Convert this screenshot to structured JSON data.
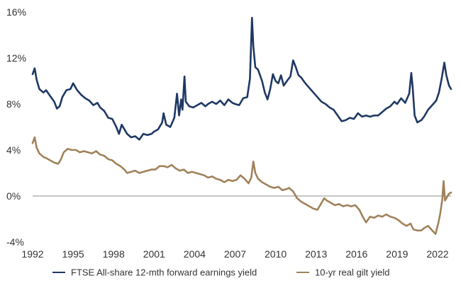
{
  "chart_data": {
    "type": "line",
    "title": "",
    "xlabel": "",
    "ylabel": "",
    "xlim": [
      1992,
      2023
    ],
    "ylim": [
      -4,
      16
    ],
    "y_ticks": [
      {
        "value": 16,
        "label": "16%"
      },
      {
        "value": 12,
        "label": "12%"
      },
      {
        "value": 8,
        "label": "8%"
      },
      {
        "value": 4,
        "label": "4%"
      },
      {
        "value": 0,
        "label": "0%"
      },
      {
        "value": -4,
        "label": "-4%"
      }
    ],
    "x_ticks": [
      {
        "value": 1992,
        "label": "1992"
      },
      {
        "value": 1995,
        "label": "1995"
      },
      {
        "value": 1998,
        "label": "1998"
      },
      {
        "value": 2001,
        "label": "2001"
      },
      {
        "value": 2004,
        "label": "2004"
      },
      {
        "value": 2007,
        "label": "2007"
      },
      {
        "value": 2010,
        "label": "2010"
      },
      {
        "value": 2013,
        "label": "2013"
      },
      {
        "value": 2016,
        "label": "2016"
      },
      {
        "value": 2019,
        "label": "2019"
      },
      {
        "value": 2022,
        "label": "2022"
      }
    ],
    "grid": false,
    "zero_line": true,
    "legend_position": "bottom",
    "series": [
      {
        "name": "FTSE All-share 12-mth forward  earnings yield",
        "color": "#1f3864",
        "points": [
          [
            1992.0,
            10.6
          ],
          [
            1992.15,
            11.1
          ],
          [
            1992.3,
            10.1
          ],
          [
            1992.5,
            9.3
          ],
          [
            1992.8,
            9.0
          ],
          [
            1993.0,
            9.2
          ],
          [
            1993.3,
            8.7
          ],
          [
            1993.6,
            8.2
          ],
          [
            1993.8,
            7.6
          ],
          [
            1994.0,
            7.8
          ],
          [
            1994.2,
            8.6
          ],
          [
            1994.5,
            9.2
          ],
          [
            1994.8,
            9.3
          ],
          [
            1995.0,
            9.8
          ],
          [
            1995.3,
            9.2
          ],
          [
            1995.6,
            8.8
          ],
          [
            1995.9,
            8.5
          ],
          [
            1996.2,
            8.3
          ],
          [
            1996.5,
            7.9
          ],
          [
            1996.8,
            8.1
          ],
          [
            1997.0,
            7.7
          ],
          [
            1997.3,
            7.4
          ],
          [
            1997.6,
            6.8
          ],
          [
            1997.9,
            6.7
          ],
          [
            1998.2,
            6.0
          ],
          [
            1998.4,
            5.4
          ],
          [
            1998.6,
            6.2
          ],
          [
            1998.8,
            5.8
          ],
          [
            1999.0,
            5.4
          ],
          [
            1999.3,
            5.1
          ],
          [
            1999.6,
            5.2
          ],
          [
            1999.9,
            4.9
          ],
          [
            2000.2,
            5.4
          ],
          [
            2000.5,
            5.3
          ],
          [
            2000.8,
            5.4
          ],
          [
            2001.0,
            5.6
          ],
          [
            2001.3,
            5.8
          ],
          [
            2001.6,
            6.4
          ],
          [
            2001.7,
            7.2
          ],
          [
            2001.9,
            6.2
          ],
          [
            2002.2,
            6.0
          ],
          [
            2002.5,
            6.8
          ],
          [
            2002.7,
            8.9
          ],
          [
            2002.85,
            7.0
          ],
          [
            2003.0,
            8.4
          ],
          [
            2003.1,
            7.5
          ],
          [
            2003.25,
            10.4
          ],
          [
            2003.35,
            8.2
          ],
          [
            2003.6,
            7.8
          ],
          [
            2003.9,
            7.7
          ],
          [
            2004.2,
            7.9
          ],
          [
            2004.5,
            8.1
          ],
          [
            2004.8,
            7.8
          ],
          [
            2005.0,
            8.0
          ],
          [
            2005.3,
            8.2
          ],
          [
            2005.6,
            8.0
          ],
          [
            2005.9,
            8.3
          ],
          [
            2006.2,
            7.9
          ],
          [
            2006.5,
            8.4
          ],
          [
            2006.8,
            8.1
          ],
          [
            2007.0,
            8.0
          ],
          [
            2007.3,
            7.9
          ],
          [
            2007.6,
            8.5
          ],
          [
            2007.9,
            8.6
          ],
          [
            2008.1,
            10.2
          ],
          [
            2008.25,
            15.5
          ],
          [
            2008.35,
            13.0
          ],
          [
            2008.5,
            11.2
          ],
          [
            2008.7,
            11.0
          ],
          [
            2009.0,
            10.0
          ],
          [
            2009.2,
            9.0
          ],
          [
            2009.4,
            8.4
          ],
          [
            2009.6,
            9.3
          ],
          [
            2009.8,
            10.6
          ],
          [
            2010.0,
            10.0
          ],
          [
            2010.2,
            9.8
          ],
          [
            2010.4,
            10.5
          ],
          [
            2010.6,
            9.6
          ],
          [
            2010.9,
            10.1
          ],
          [
            2011.1,
            10.4
          ],
          [
            2011.3,
            11.8
          ],
          [
            2011.5,
            11.2
          ],
          [
            2011.7,
            10.5
          ],
          [
            2011.9,
            10.3
          ],
          [
            2012.2,
            9.8
          ],
          [
            2012.5,
            9.4
          ],
          [
            2012.8,
            9.0
          ],
          [
            2013.1,
            8.6
          ],
          [
            2013.4,
            8.2
          ],
          [
            2013.7,
            8.0
          ],
          [
            2014.0,
            7.7
          ],
          [
            2014.3,
            7.5
          ],
          [
            2014.6,
            7.0
          ],
          [
            2014.9,
            6.5
          ],
          [
            2015.2,
            6.6
          ],
          [
            2015.5,
            6.8
          ],
          [
            2015.8,
            6.7
          ],
          [
            2016.1,
            7.2
          ],
          [
            2016.4,
            6.9
          ],
          [
            2016.7,
            7.0
          ],
          [
            2017.0,
            6.9
          ],
          [
            2017.3,
            7.0
          ],
          [
            2017.6,
            7.0
          ],
          [
            2017.9,
            7.3
          ],
          [
            2018.2,
            7.6
          ],
          [
            2018.5,
            7.8
          ],
          [
            2018.8,
            8.2
          ],
          [
            2019.0,
            8.0
          ],
          [
            2019.3,
            8.5
          ],
          [
            2019.6,
            8.1
          ],
          [
            2019.9,
            8.9
          ],
          [
            2020.05,
            10.7
          ],
          [
            2020.15,
            9.5
          ],
          [
            2020.3,
            7.0
          ],
          [
            2020.5,
            6.4
          ],
          [
            2020.8,
            6.6
          ],
          [
            2021.0,
            6.9
          ],
          [
            2021.3,
            7.5
          ],
          [
            2021.6,
            7.9
          ],
          [
            2021.9,
            8.3
          ],
          [
            2022.1,
            9.0
          ],
          [
            2022.3,
            10.2
          ],
          [
            2022.5,
            11.6
          ],
          [
            2022.65,
            10.5
          ],
          [
            2022.85,
            9.6
          ],
          [
            2023.0,
            9.3
          ]
        ]
      },
      {
        "name": "10-yr real gilt yield",
        "color": "#a0825a",
        "points": [
          [
            1992.0,
            4.6
          ],
          [
            1992.15,
            5.1
          ],
          [
            1992.3,
            4.2
          ],
          [
            1992.5,
            3.7
          ],
          [
            1992.8,
            3.4
          ],
          [
            1993.0,
            3.3
          ],
          [
            1993.3,
            3.1
          ],
          [
            1993.6,
            2.9
          ],
          [
            1993.9,
            2.8
          ],
          [
            1994.1,
            3.2
          ],
          [
            1994.3,
            3.8
          ],
          [
            1994.6,
            4.1
          ],
          [
            1994.9,
            4.0
          ],
          [
            1995.2,
            4.0
          ],
          [
            1995.5,
            3.8
          ],
          [
            1995.8,
            3.9
          ],
          [
            1996.1,
            3.8
          ],
          [
            1996.4,
            3.7
          ],
          [
            1996.7,
            3.9
          ],
          [
            1997.0,
            3.6
          ],
          [
            1997.3,
            3.5
          ],
          [
            1997.6,
            3.2
          ],
          [
            1997.9,
            3.1
          ],
          [
            1998.2,
            2.8
          ],
          [
            1998.5,
            2.6
          ],
          [
            1998.8,
            2.3
          ],
          [
            1999.0,
            2.0
          ],
          [
            1999.3,
            2.1
          ],
          [
            1999.6,
            2.2
          ],
          [
            1999.9,
            2.0
          ],
          [
            2000.2,
            2.1
          ],
          [
            2000.5,
            2.2
          ],
          [
            2000.8,
            2.3
          ],
          [
            2001.1,
            2.3
          ],
          [
            2001.4,
            2.6
          ],
          [
            2001.7,
            2.6
          ],
          [
            2002.0,
            2.5
          ],
          [
            2002.3,
            2.7
          ],
          [
            2002.6,
            2.4
          ],
          [
            2002.9,
            2.2
          ],
          [
            2003.2,
            2.3
          ],
          [
            2003.5,
            2.0
          ],
          [
            2003.8,
            2.1
          ],
          [
            2004.1,
            2.0
          ],
          [
            2004.4,
            1.9
          ],
          [
            2004.7,
            1.8
          ],
          [
            2005.0,
            1.6
          ],
          [
            2005.3,
            1.7
          ],
          [
            2005.6,
            1.5
          ],
          [
            2005.9,
            1.4
          ],
          [
            2006.2,
            1.2
          ],
          [
            2006.5,
            1.4
          ],
          [
            2006.8,
            1.3
          ],
          [
            2007.1,
            1.4
          ],
          [
            2007.4,
            1.8
          ],
          [
            2007.7,
            1.5
          ],
          [
            2008.0,
            1.1
          ],
          [
            2008.2,
            1.6
          ],
          [
            2008.35,
            3.0
          ],
          [
            2008.5,
            2.0
          ],
          [
            2008.7,
            1.5
          ],
          [
            2009.0,
            1.2
          ],
          [
            2009.3,
            1.0
          ],
          [
            2009.6,
            0.8
          ],
          [
            2009.9,
            0.7
          ],
          [
            2010.2,
            0.8
          ],
          [
            2010.5,
            0.5
          ],
          [
            2010.8,
            0.6
          ],
          [
            2011.0,
            0.7
          ],
          [
            2011.3,
            0.4
          ],
          [
            2011.6,
            -0.2
          ],
          [
            2011.9,
            -0.5
          ],
          [
            2012.2,
            -0.7
          ],
          [
            2012.5,
            -0.9
          ],
          [
            2012.8,
            -1.1
          ],
          [
            2013.1,
            -1.2
          ],
          [
            2013.4,
            -0.6
          ],
          [
            2013.6,
            -0.2
          ],
          [
            2013.8,
            -0.4
          ],
          [
            2014.1,
            -0.6
          ],
          [
            2014.4,
            -0.8
          ],
          [
            2014.7,
            -0.7
          ],
          [
            2015.0,
            -0.9
          ],
          [
            2015.3,
            -0.8
          ],
          [
            2015.6,
            -0.9
          ],
          [
            2015.9,
            -0.8
          ],
          [
            2016.2,
            -1.2
          ],
          [
            2016.5,
            -1.9
          ],
          [
            2016.7,
            -2.3
          ],
          [
            2017.0,
            -1.8
          ],
          [
            2017.3,
            -1.9
          ],
          [
            2017.6,
            -1.7
          ],
          [
            2017.9,
            -1.8
          ],
          [
            2018.2,
            -1.6
          ],
          [
            2018.5,
            -1.8
          ],
          [
            2018.8,
            -1.9
          ],
          [
            2019.1,
            -2.1
          ],
          [
            2019.4,
            -2.4
          ],
          [
            2019.7,
            -2.6
          ],
          [
            2020.0,
            -2.4
          ],
          [
            2020.2,
            -2.9
          ],
          [
            2020.5,
            -3.0
          ],
          [
            2020.8,
            -3.0
          ],
          [
            2021.0,
            -2.8
          ],
          [
            2021.3,
            -2.6
          ],
          [
            2021.6,
            -3.0
          ],
          [
            2021.85,
            -3.3
          ],
          [
            2022.05,
            -2.4
          ],
          [
            2022.2,
            -1.5
          ],
          [
            2022.35,
            -0.3
          ],
          [
            2022.45,
            1.3
          ],
          [
            2022.55,
            -0.4
          ],
          [
            2022.7,
            -0.1
          ],
          [
            2022.85,
            0.2
          ],
          [
            2023.0,
            0.3
          ]
        ]
      }
    ]
  }
}
